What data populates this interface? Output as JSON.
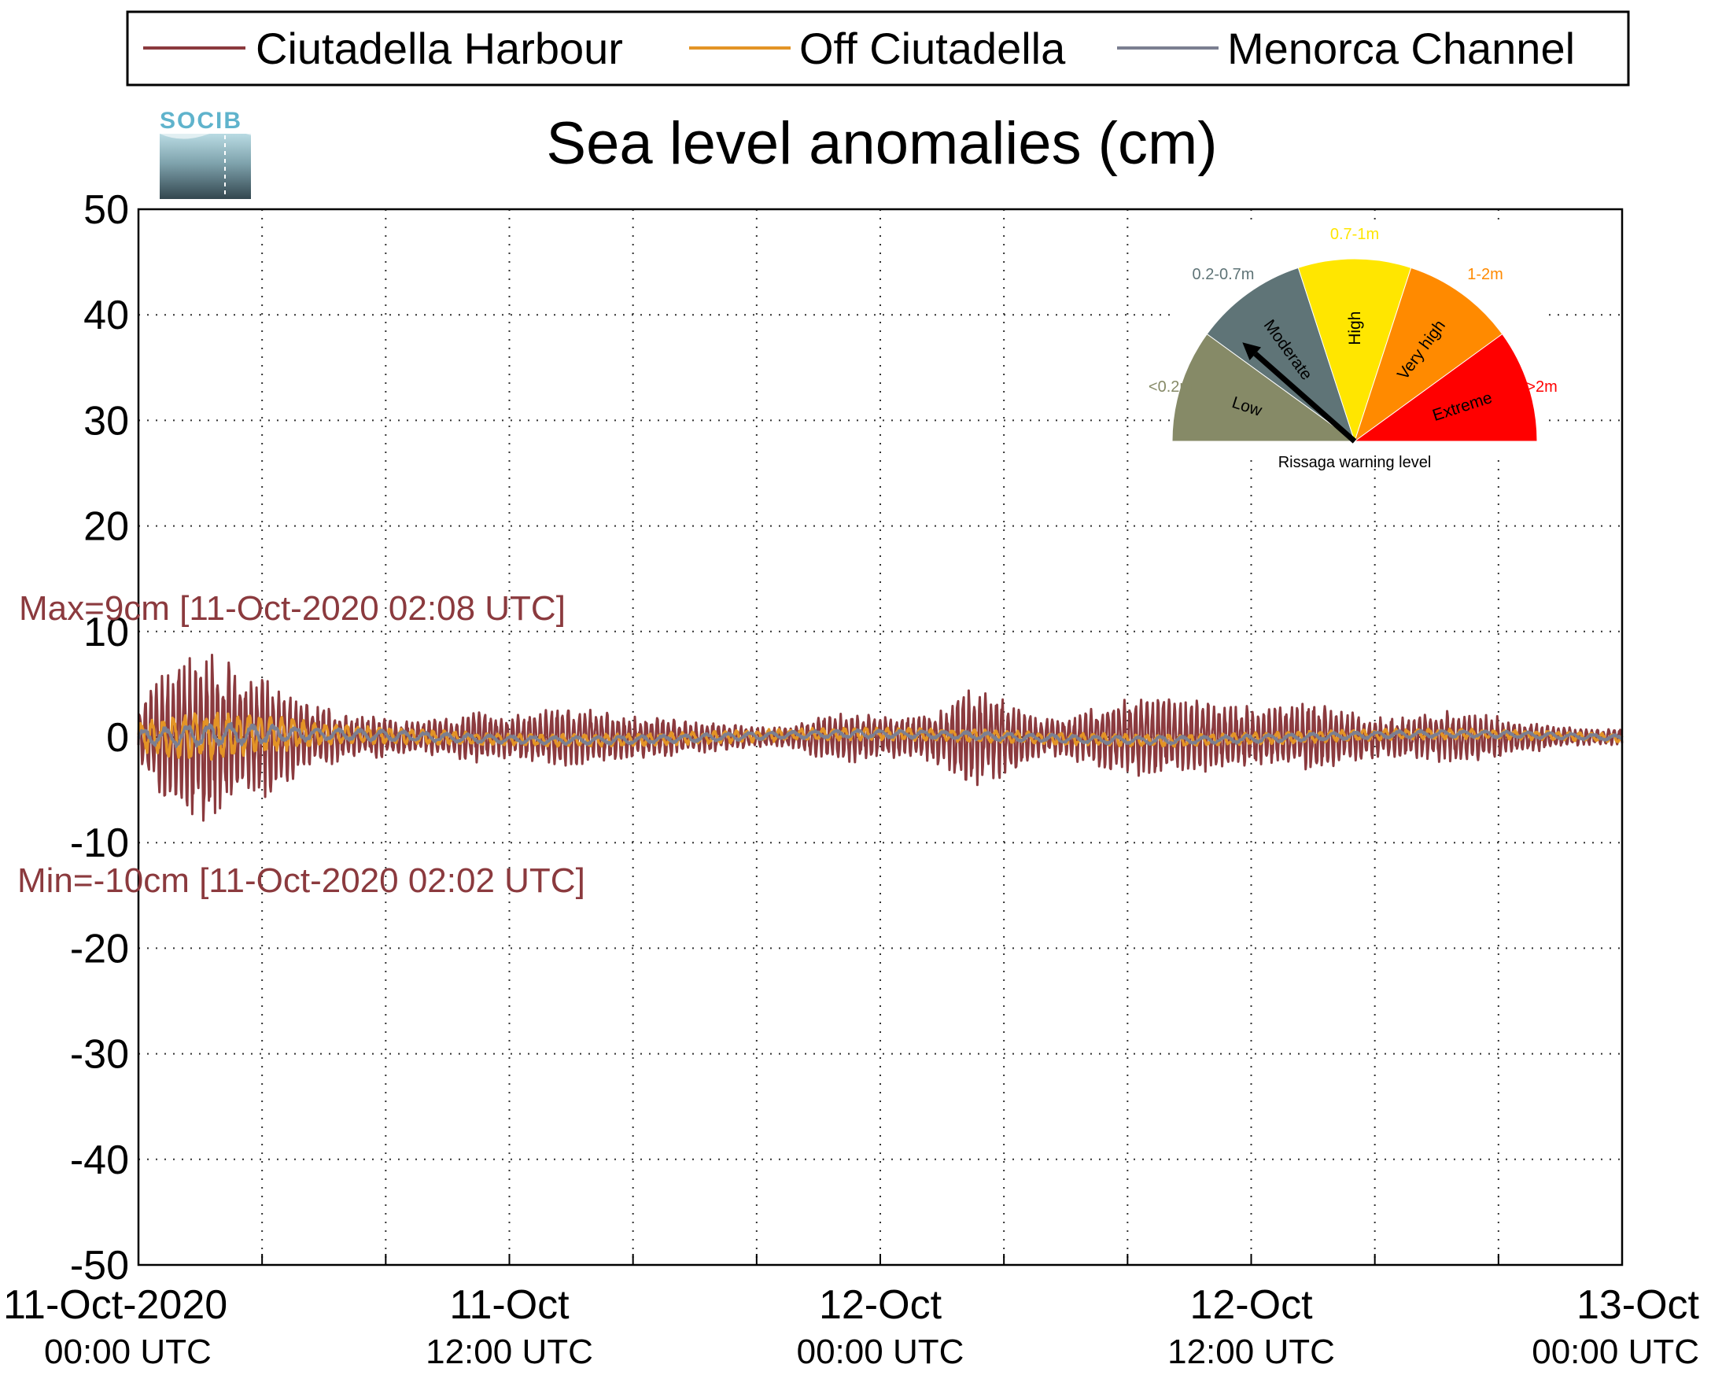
{
  "chart_data": {
    "type": "line",
    "title": "Sea level anomalies (cm)",
    "ylim": [
      -50,
      50
    ],
    "yticks": [
      50,
      40,
      30,
      20,
      10,
      0,
      -10,
      -20,
      -30,
      -40,
      -50
    ],
    "x_range_hours": [
      0,
      48
    ],
    "xticks": [
      {
        "line1": "11-Oct-2020",
        "line2": "00:00 UTC",
        "hour": 0
      },
      {
        "line1": "11-Oct",
        "line2": "12:00 UTC",
        "hour": 12
      },
      {
        "line1": "12-Oct",
        "line2": "00:00 UTC",
        "hour": 24
      },
      {
        "line1": "12-Oct",
        "line2": "12:00 UTC",
        "hour": 36
      },
      {
        "line1": "13-Oct",
        "line2": "00:00 UTC",
        "hour": 48
      }
    ],
    "grid": true,
    "legend_position": "top",
    "series": [
      {
        "name": "Ciutadella Harbour",
        "color": "#8b3a3e",
        "envelope_hours": [
          0,
          1,
          2,
          3,
          4,
          5,
          6,
          7,
          8,
          9,
          10,
          11,
          12,
          13,
          14,
          15,
          16,
          17,
          18,
          19,
          20,
          21,
          22,
          23,
          24,
          25,
          26,
          27,
          28,
          29,
          30,
          31,
          32,
          33,
          34,
          35,
          36,
          37,
          38,
          39,
          40,
          41,
          42,
          43,
          44,
          45,
          46,
          47,
          48
        ],
        "envelope_cm": [
          3,
          7,
          9,
          7,
          6,
          4,
          3,
          2,
          2,
          1.5,
          2,
          2.5,
          2,
          2.5,
          3,
          2.5,
          2,
          2,
          1.5,
          1.5,
          1,
          1,
          2,
          2.5,
          2,
          2,
          3,
          5,
          4,
          2,
          2,
          3,
          4,
          4,
          3.5,
          3.5,
          3,
          3,
          3.5,
          2.5,
          2,
          2,
          2.5,
          2.5,
          2,
          1.5,
          1,
          0.8,
          0.8
        ]
      },
      {
        "name": "Off Ciutadella",
        "color": "#e39426",
        "envelope_hours": [
          0,
          2,
          4,
          6,
          8,
          12,
          24,
          36,
          48
        ],
        "envelope_cm": [
          1.5,
          2.5,
          2,
          1,
          0.8,
          0.6,
          0.6,
          0.6,
          0.4
        ]
      },
      {
        "name": "Menorca Channel",
        "color": "#7b7f91",
        "envelope_hours": [
          0,
          2,
          4,
          6,
          12,
          24,
          36,
          48
        ],
        "envelope_cm": [
          0.8,
          1.2,
          1,
          0.6,
          0.4,
          0.4,
          0.4,
          0.3
        ]
      }
    ],
    "annotations": {
      "max": "Max=9cm [11-Oct-2020 02:08 UTC]",
      "min": "Min=-10cm [11-Oct-2020 02:02 UTC]"
    }
  },
  "logo": {
    "text": "SOCIB"
  },
  "gauge": {
    "title": "Rissaga warning level",
    "pointer_level": "Moderate",
    "sectors": [
      {
        "name": "Low",
        "range": "<0.2m",
        "color": "#868a67"
      },
      {
        "name": "Moderate",
        "range": "0.2-0.7m",
        "color": "#5f7477"
      },
      {
        "name": "High",
        "range": "0.7-1m",
        "color": "#ffe600"
      },
      {
        "name": "Very high",
        "range": "1-2m",
        "color": "#ff8a00"
      },
      {
        "name": "Extreme",
        "range": ">2m",
        "color": "#ff0000"
      }
    ]
  }
}
